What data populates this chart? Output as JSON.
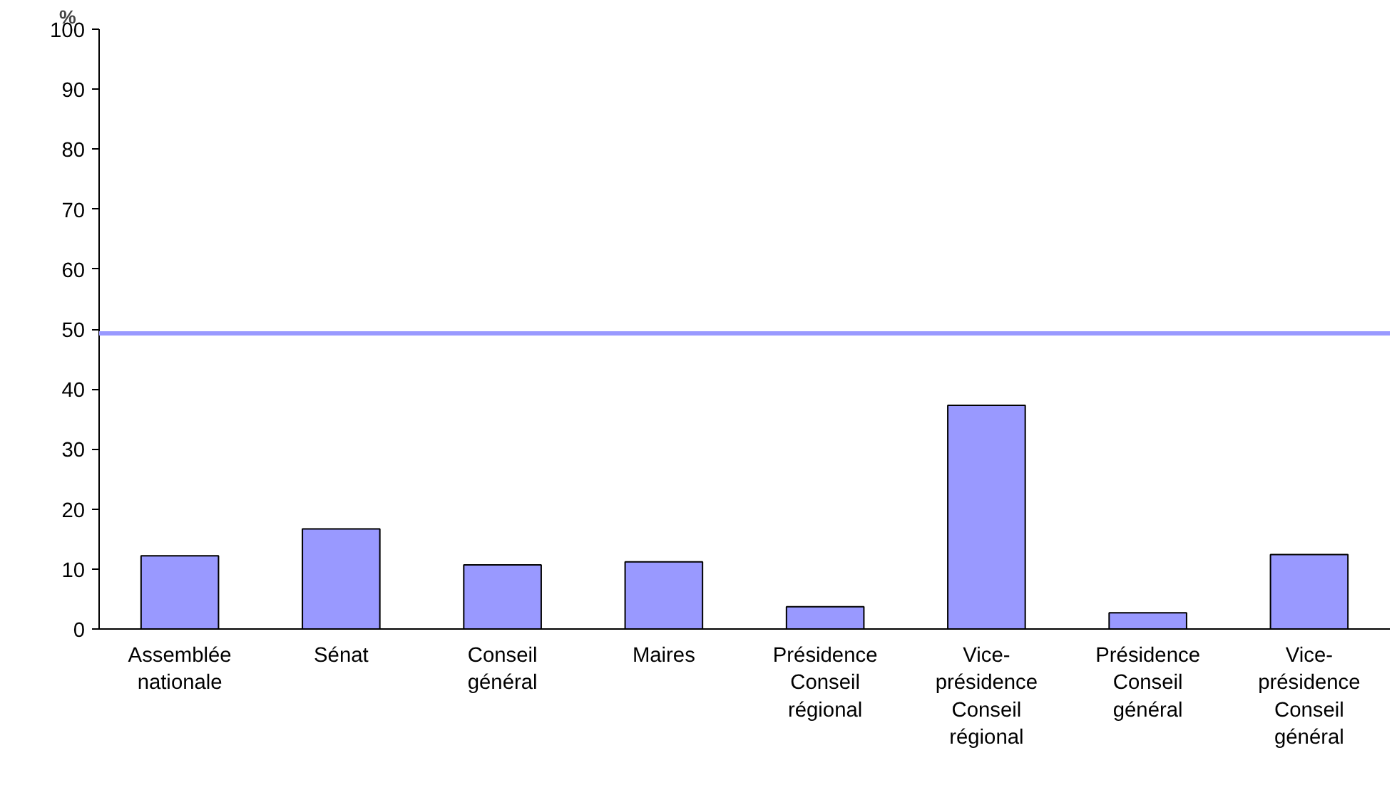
{
  "chart_data": {
    "type": "bar",
    "ylabel": "%",
    "categories": [
      "Assemblée nationale",
      "Sénat",
      "Conseil général",
      "Maires",
      "Présidence Conseil régional",
      "Vice-présidence Conseil régional",
      "Présidence Conseil général",
      "Vice-présidence Conseil général"
    ],
    "values": [
      12.2,
      16.7,
      10.7,
      11.2,
      3.7,
      37.3,
      2.7,
      12.4
    ],
    "color": "#9999ff",
    "ylim": [
      0,
      100
    ],
    "yticks": [
      0,
      10,
      20,
      30,
      40,
      50,
      60,
      70,
      80,
      90,
      100
    ],
    "ref_lines": [
      {
        "axis": "y",
        "value": 49.3,
        "label": null,
        "color": "#9999ff"
      }
    ],
    "grid": false
  }
}
